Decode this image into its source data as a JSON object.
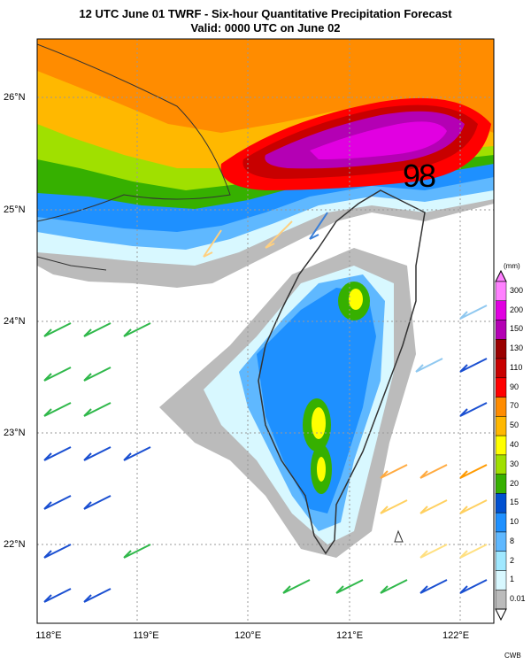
{
  "title": {
    "line1": "12 UTC June 01 TWRF - Six-hour Quantitative Precipitation Forecast",
    "line2": "Valid: 0000 UTC on June 02"
  },
  "max_value_label": "98",
  "credit": "CWB",
  "lat_labels": [
    "26°N",
    "25°N",
    "24°N",
    "23°N",
    "22°N"
  ],
  "lon_labels": [
    "118°E",
    "119°E",
    "120°E",
    "121°E",
    "122°E"
  ],
  "colorbar": {
    "unit": "(mm)",
    "levels": [
      "300",
      "200",
      "150",
      "130",
      "110",
      "90",
      "70",
      "50",
      "40",
      "30",
      "20",
      "15",
      "10",
      "8",
      "2",
      "1",
      "0.01"
    ],
    "colors": [
      "#ff80ff",
      "#e100e1",
      "#b400b4",
      "#9a0000",
      "#c80000",
      "#ff0000",
      "#ff8c00",
      "#ffb800",
      "#ffff00",
      "#a0e000",
      "#36b000",
      "#0050d0",
      "#1e90ff",
      "#5fb8ff",
      "#a0e8ff",
      "#d8f8ff",
      "#bbbbbb"
    ]
  }
}
